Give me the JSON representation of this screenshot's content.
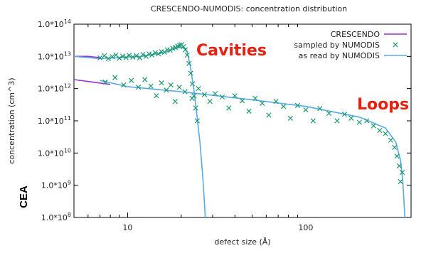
{
  "chart_data": {
    "type": "scatter",
    "title": "CRESCENDO-NUMODIS: concentration distribution",
    "xlabel": "defect size (Å)",
    "ylabel": "concentration (cm^3)",
    "x_scale": "log",
    "y_scale": "log",
    "xlim": [
      5,
      390
    ],
    "ylim": [
      100000000.0,
      100000000000000.0
    ],
    "x_ticks": [
      {
        "value": 10,
        "label": "10"
      },
      {
        "value": 100,
        "label": "100"
      }
    ],
    "y_ticks": [
      {
        "value": 100000000.0,
        "base": "1.0*10",
        "exp": "8"
      },
      {
        "value": 1000000000.0,
        "base": "1.0*10",
        "exp": "9"
      },
      {
        "value": 10000000000.0,
        "base": "1.0*10",
        "exp": "10"
      },
      {
        "value": 100000000000.0,
        "base": "1.0*10",
        "exp": "11"
      },
      {
        "value": 1000000000000.0,
        "base": "1.0*10",
        "exp": "12"
      },
      {
        "value": 10000000000000.0,
        "base": "1.0*10",
        "exp": "13"
      },
      {
        "value": 100000000000000.0,
        "base": "1.0*10",
        "exp": "14"
      }
    ],
    "grid": false,
    "legend_position": "top-right",
    "series": [
      {
        "name": "CRESCENDO",
        "kind": "line",
        "color": "#9c2fd0",
        "segments": [
          [
            [
              5.0,
              10000000000000.0
            ],
            [
              6.0,
              10000000000000.0
            ],
            [
              7.0,
              9200000000000.0
            ]
          ],
          [
            [
              5.0,
              1900000000000.0
            ],
            [
              8.0,
              1350000000000.0
            ]
          ]
        ]
      },
      {
        "name": "sampled by NUMODIS",
        "kind": "scatter",
        "marker": "x",
        "color": "#1a9a6c",
        "groups": [
          {
            "label": "Cavities",
            "points": [
              [
                7.0,
                9000000000000.0
              ],
              [
                7.4,
                10500000000000.0
              ],
              [
                7.8,
                8500000000000.0
              ],
              [
                8.2,
                9800000000000.0
              ],
              [
                8.6,
                11000000000000.0
              ],
              [
                9.0,
                8800000000000.0
              ],
              [
                9.4,
                10200000000000.0
              ],
              [
                9.8,
                9200000000000.0
              ],
              [
                10.2,
                10800000000000.0
              ],
              [
                10.7,
                9500000000000.0
              ],
              [
                11.2,
                10500000000000.0
              ],
              [
                11.7,
                9000000000000.0
              ],
              [
                12.2,
                11500000000000.0
              ],
              [
                12.7,
                10000000000000.0
              ],
              [
                13.2,
                12000000000000.0
              ],
              [
                13.7,
                11000000000000.0
              ],
              [
                14.3,
                13000000000000.0
              ],
              [
                14.9,
                12000000000000.0
              ],
              [
                15.5,
                14000000000000.0
              ],
              [
                16.1,
                13500000000000.0
              ],
              [
                16.7,
                16000000000000.0
              ],
              [
                17.3,
                15500000000000.0
              ],
              [
                17.9,
                18000000000000.0
              ],
              [
                18.5,
                19000000000000.0
              ],
              [
                19.1,
                21000000000000.0
              ],
              [
                19.6,
                22000000000000.0
              ],
              [
                20.1,
                23000000000000.0
              ],
              [
                20.6,
                20000000000000.0
              ],
              [
                21.1,
                16000000000000.0
              ],
              [
                21.6,
                11000000000000.0
              ],
              [
                22.1,
                6000000000000.0
              ],
              [
                22.6,
                3000000000000.0
              ],
              [
                23.1,
                1400000000000.0
              ],
              [
                23.6,
                600000000000.0
              ],
              [
                24.1,
                250000000000.0
              ],
              [
                24.6,
                100000000000.0
              ]
            ]
          },
          {
            "label": "Loops",
            "points": [
              [
                7.5,
                1600000000000.0
              ],
              [
                8.5,
                2200000000000.0
              ],
              [
                9.5,
                1300000000000.0
              ],
              [
                10.5,
                1800000000000.0
              ],
              [
                11.5,
                1100000000000.0
              ],
              [
                12.5,
                1900000000000.0
              ],
              [
                13.5,
                1200000000000.0
              ],
              [
                14.5,
                600000000000.0
              ],
              [
                15.5,
                1500000000000.0
              ],
              [
                16.5,
                900000000000.0
              ],
              [
                17.5,
                1300000000000.0
              ],
              [
                18.5,
                400000000000.0
              ],
              [
                19.5,
                1100000000000.0
              ],
              [
                21.0,
                800000000000.0
              ],
              [
                23.0,
                500000000000.0
              ],
              [
                25.0,
                1000000000000.0
              ],
              [
                27.0,
                650000000000.0
              ],
              [
                29.0,
                400000000000.0
              ],
              [
                31.0,
                700000000000.0
              ],
              [
                34.0,
                550000000000.0
              ],
              [
                37.0,
                250000000000.0
              ],
              [
                40.0,
                600000000000.0
              ],
              [
                44.0,
                420000000000.0
              ],
              [
                48.0,
                200000000000.0
              ],
              [
                52.0,
                500000000000.0
              ],
              [
                57.0,
                350000000000.0
              ],
              [
                62.0,
                150000000000.0
              ],
              [
                68.0,
                400000000000.0
              ],
              [
                75.0,
                280000000000.0
              ],
              [
                82.0,
                120000000000.0
              ],
              [
                90.0,
                300000000000.0
              ],
              [
                100.0,
                220000000000.0
              ],
              [
                110.0,
                100000000000.0
              ],
              [
                120.0,
                240000000000.0
              ],
              [
                135.0,
                170000000000.0
              ],
              [
                150.0,
                100000000000.0
              ],
              [
                165.0,
                160000000000.0
              ],
              [
                180.0,
                120000000000.0
              ],
              [
                200.0,
                90000000000.0
              ],
              [
                220.0,
                100000000000.0
              ],
              [
                240.0,
                70000000000.0
              ],
              [
                260.0,
                50000000000.0
              ],
              [
                280.0,
                40000000000.0
              ],
              [
                300.0,
                25000000000.0
              ],
              [
                315.0,
                15000000000.0
              ],
              [
                325.0,
                8000000000.0
              ],
              [
                335.0,
                4000000000.0
              ],
              [
                340.0,
                1300000000.0
              ],
              [
                348.0,
                2500000000.0
              ]
            ]
          }
        ]
      },
      {
        "name": "as read by NUMODIS",
        "kind": "line",
        "color": "#5aa9e6",
        "segments": [
          [
            [
              5.0,
              10000000000000.0
            ],
            [
              7.0,
              8500000000000.0
            ],
            [
              12.0,
              10000000000000.0
            ],
            [
              16.0,
              13000000000000.0
            ],
            [
              19.0,
              18000000000000.0
            ],
            [
              20.5,
              20000000000000.0
            ],
            [
              21.5,
              15000000000000.0
            ],
            [
              22.5,
              5000000000000.0
            ],
            [
              23.5,
              1000000000000.0
            ],
            [
              24.5,
              150000000000.0
            ],
            [
              25.5,
              20000000000.0
            ],
            [
              26.5,
              1500000000.0
            ],
            [
              27.3,
              100000000.0
            ]
          ],
          [
            [
              7.0,
              1800000000000.0
            ],
            [
              10.0,
              1150000000000.0
            ],
            [
              20.0,
              800000000000.0
            ],
            [
              50.0,
              450000000000.0
            ],
            [
              100.0,
              280000000000.0
            ],
            [
              200.0,
              130000000000.0
            ],
            [
              280.0,
              60000000000.0
            ],
            [
              320.0,
              22000000000.0
            ],
            [
              340.0,
              6000000000.0
            ],
            [
              350.0,
              1500000000.0
            ],
            [
              356.0,
              300000000.0
            ],
            [
              360.0,
              100000000.0
            ]
          ]
        ]
      }
    ],
    "annotations": [
      {
        "text": "Cavities",
        "color": "#e8200f",
        "x": 45,
        "y": 10000000000000.0
      },
      {
        "text": "Loops",
        "color": "#e8200f",
        "x": 270,
        "y": 800000000000.0
      },
      {
        "text": "CEA",
        "color": "#000000",
        "x": 5,
        "y": 400000000.0
      }
    ]
  }
}
